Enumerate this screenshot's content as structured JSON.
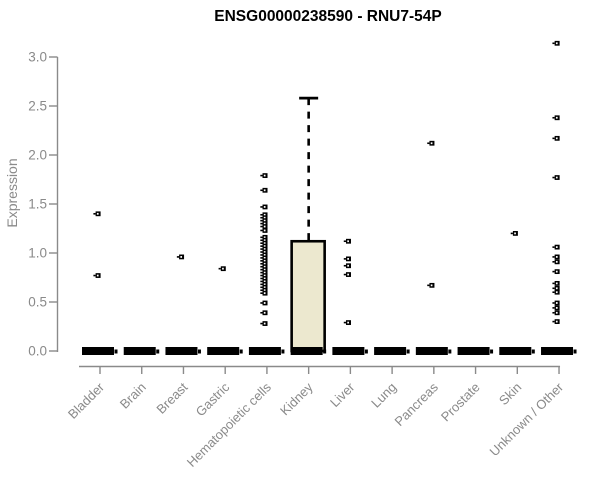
{
  "chart_data": {
    "type": "boxplot",
    "title": "ENSG00000238590 - RNU7-54P",
    "ylabel": "Expression",
    "xlabel": "",
    "ylim": [
      0,
      3.3
    ],
    "yticks": [
      0.0,
      0.5,
      1.0,
      1.5,
      2.0,
      2.5,
      3.0
    ],
    "grid": false,
    "legend": "none",
    "categories": [
      "Bladder",
      "Brain",
      "Breast",
      "Gastric",
      "Hematopoietic cells",
      "Kidney",
      "Liver",
      "Lung",
      "Pancreas",
      "Prostate",
      "Skin",
      "Unknown / Other"
    ],
    "boxes": [
      {
        "category": "Bladder",
        "q1": 0,
        "median": 0,
        "q3": 0,
        "whisker_low": 0,
        "whisker_high": 0
      },
      {
        "category": "Brain",
        "q1": 0,
        "median": 0,
        "q3": 0,
        "whisker_low": 0,
        "whisker_high": 0
      },
      {
        "category": "Breast",
        "q1": 0,
        "median": 0,
        "q3": 0,
        "whisker_low": 0,
        "whisker_high": 0
      },
      {
        "category": "Gastric",
        "q1": 0,
        "median": 0,
        "q3": 0,
        "whisker_low": 0,
        "whisker_high": 0
      },
      {
        "category": "Hematopoietic cells",
        "q1": 0,
        "median": 0,
        "q3": 0,
        "whisker_low": 0,
        "whisker_high": 0
      },
      {
        "category": "Kidney",
        "q1": 0,
        "median": 0,
        "q3": 1.12,
        "whisker_low": 0,
        "whisker_high": 2.58
      },
      {
        "category": "Liver",
        "q1": 0,
        "median": 0,
        "q3": 0,
        "whisker_low": 0,
        "whisker_high": 0
      },
      {
        "category": "Lung",
        "q1": 0,
        "median": 0,
        "q3": 0,
        "whisker_low": 0,
        "whisker_high": 0
      },
      {
        "category": "Pancreas",
        "q1": 0,
        "median": 0,
        "q3": 0,
        "whisker_low": 0,
        "whisker_high": 0
      },
      {
        "category": "Prostate",
        "q1": 0,
        "median": 0,
        "q3": 0,
        "whisker_low": 0,
        "whisker_high": 0
      },
      {
        "category": "Skin",
        "q1": 0,
        "median": 0,
        "q3": 0,
        "whisker_low": 0,
        "whisker_high": 0
      },
      {
        "category": "Unknown / Other",
        "q1": 0,
        "median": 0,
        "q3": 0,
        "whisker_low": 0,
        "whisker_high": 0
      }
    ],
    "points": [
      [
        1.4,
        0.77
      ],
      [],
      [
        0.96
      ],
      [
        0.84
      ],
      [
        1.79,
        1.64,
        1.47,
        1.39,
        1.36,
        1.33,
        1.3,
        1.27,
        1.23,
        1.16,
        1.13,
        1.1,
        1.07,
        1.04,
        1.01,
        0.98,
        0.95,
        0.92,
        0.89,
        0.86,
        0.83,
        0.8,
        0.77,
        0.74,
        0.71,
        0.68,
        0.65,
        0.62,
        0.59,
        0.49,
        0.39,
        0.28
      ],
      [],
      [
        1.12,
        0.94,
        0.87,
        0.78,
        0.29
      ],
      [],
      [
        2.12,
        0.67
      ],
      [],
      [
        1.2
      ],
      [
        3.14,
        2.38,
        2.17,
        1.77,
        1.06,
        0.96,
        0.91,
        0.81,
        0.69,
        0.64,
        0.6,
        0.49,
        0.44,
        0.39,
        0.3
      ]
    ],
    "colors": {
      "box_fill": "#ece8cf",
      "box_border": "#000000",
      "point": "#000000",
      "axis": "#8a8a8a",
      "tick_text": "#8a8a8a",
      "title_text": "#000000",
      "background": "#ffffff"
    }
  }
}
